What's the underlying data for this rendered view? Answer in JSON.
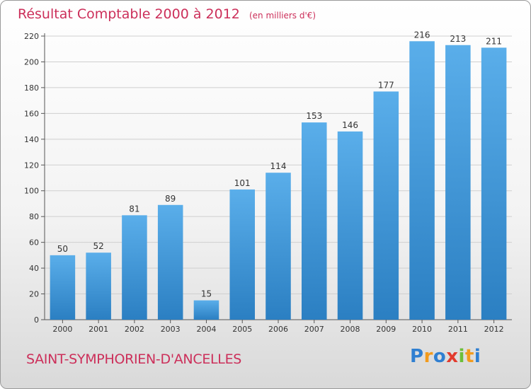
{
  "header": {
    "title": "Résultat Comptable 2000 à 2012",
    "subtitle": "(en milliers d'€)"
  },
  "footer": {
    "commune": "SAINT-SYMPHORIEN-D'ANCELLES",
    "brand": {
      "text": "Proxiti",
      "letters": [
        {
          "ch": "P",
          "color": "#2f7fd1"
        },
        {
          "ch": "r",
          "color": "#f29b1d"
        },
        {
          "ch": "o",
          "color": "#2f7fd1"
        },
        {
          "ch": "x",
          "color": "#e23b2e"
        },
        {
          "ch": "i",
          "color": "#6cbf3a"
        },
        {
          "ch": "t",
          "color": "#f29b1d"
        },
        {
          "ch": "i",
          "color": "#2f7fd1"
        }
      ]
    }
  },
  "colors": {
    "title": "#cc2f5a",
    "bar_top": "#5aaeea",
    "bar_bottom": "#2b7fc2",
    "grid": "#cfcfcf"
  },
  "chart_data": {
    "type": "bar",
    "title": "Résultat Comptable 2000 à 2012",
    "subtitle": "(en milliers d'€)",
    "categories": [
      "2000",
      "2001",
      "2002",
      "2003",
      "2004",
      "2005",
      "2006",
      "2007",
      "2008",
      "2009",
      "2010",
      "2011",
      "2012"
    ],
    "values": [
      50,
      52,
      81,
      89,
      15,
      101,
      114,
      153,
      146,
      177,
      216,
      213,
      211
    ],
    "ylim": [
      0,
      220
    ],
    "yticks": [
      0,
      20,
      40,
      60,
      80,
      100,
      120,
      140,
      160,
      180,
      200,
      220
    ],
    "grid": true,
    "data_labels": true
  }
}
